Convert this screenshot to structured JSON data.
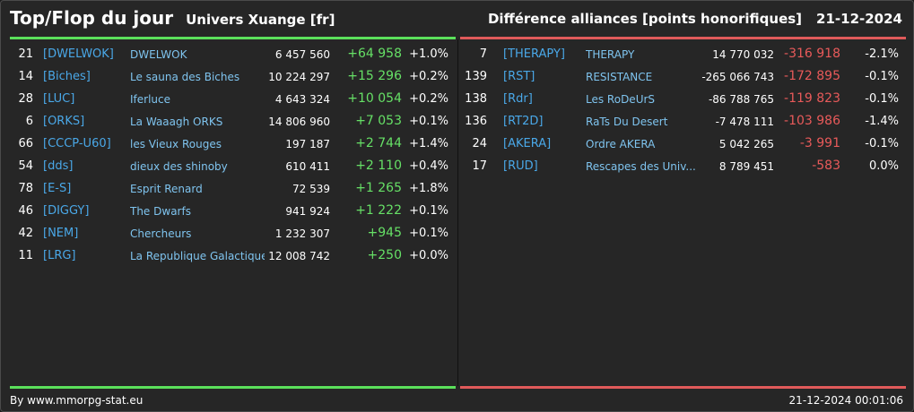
{
  "header": {
    "title": "Top/Flop du jour",
    "universe": "Univers Xuange [fr]",
    "category": "Différence alliances [points honorifiques]",
    "date": "21-12-2024"
  },
  "colors": {
    "top_accent": "#5be05b",
    "flop_accent": "#e05a5a",
    "tag": "#4aa8e8",
    "name": "#7fc4ef"
  },
  "top": [
    {
      "rank": "21",
      "tag": "[DWELWOK]",
      "name": "DWELWOK",
      "points": "6 457 560",
      "diff": "+64 958",
      "pct": "+1.0%"
    },
    {
      "rank": "14",
      "tag": "[Biches]",
      "name": "Le sauna des Biches",
      "points": "10 224 297",
      "diff": "+15 296",
      "pct": "+0.2%"
    },
    {
      "rank": "28",
      "tag": "[LUC]",
      "name": "Iferluce",
      "points": "4 643 324",
      "diff": "+10 054",
      "pct": "+0.2%"
    },
    {
      "rank": "6",
      "tag": "[ORKS]",
      "name": "La Waaagh ORKS",
      "points": "14 806 960",
      "diff": "+7 053",
      "pct": "+0.1%"
    },
    {
      "rank": "66",
      "tag": "[CCCP-U60]",
      "name": "les Vieux Rouges",
      "points": "197 187",
      "diff": "+2 744",
      "pct": "+1.4%"
    },
    {
      "rank": "54",
      "tag": "[dds]",
      "name": "dieux des shinoby",
      "points": "610 411",
      "diff": "+2 110",
      "pct": "+0.4%"
    },
    {
      "rank": "78",
      "tag": "[E-S]",
      "name": "Esprit Renard",
      "points": "72 539",
      "diff": "+1 265",
      "pct": "+1.8%"
    },
    {
      "rank": "46",
      "tag": "[DIGGY]",
      "name": "The Dwarfs",
      "points": "941 924",
      "diff": "+1 222",
      "pct": "+0.1%"
    },
    {
      "rank": "42",
      "tag": "[NEM]",
      "name": "Chercheurs",
      "points": "1 232 307",
      "diff": "+945",
      "pct": "+0.1%"
    },
    {
      "rank": "11",
      "tag": "[LRG]",
      "name": "La Republique Galactique",
      "points": "12 008 742",
      "diff": "+250",
      "pct": "+0.0%"
    }
  ],
  "flop": [
    {
      "rank": "7",
      "tag": "[THERAPY]",
      "name": "THERAPY",
      "points": "14 770 032",
      "diff": "-316 918",
      "pct": "-2.1%"
    },
    {
      "rank": "139",
      "tag": "[RST]",
      "name": "RESISTANCE",
      "points": "-265 066 743",
      "diff": "-172 895",
      "pct": "-0.1%"
    },
    {
      "rank": "138",
      "tag": "[Rdr]",
      "name": "Les RoDeUrS",
      "points": "-86 788 765",
      "diff": "-119 823",
      "pct": "-0.1%"
    },
    {
      "rank": "136",
      "tag": "[RT2D]",
      "name": "RaTs Du Desert",
      "points": "-7 478 111",
      "diff": "-103 986",
      "pct": "-1.4%"
    },
    {
      "rank": "24",
      "tag": "[AKERA]",
      "name": "Ordre AKERA",
      "points": "5 042 265",
      "diff": "-3 991",
      "pct": "-0.1%"
    },
    {
      "rank": "17",
      "tag": "[RUD]",
      "name": "Rescapes des Univ...",
      "points": "8 789 451",
      "diff": "-583",
      "pct": "0.0%"
    }
  ],
  "footer": {
    "credit": "By www.mmorpg-stat.eu",
    "timestamp": "21-12-2024 00:01:06"
  }
}
